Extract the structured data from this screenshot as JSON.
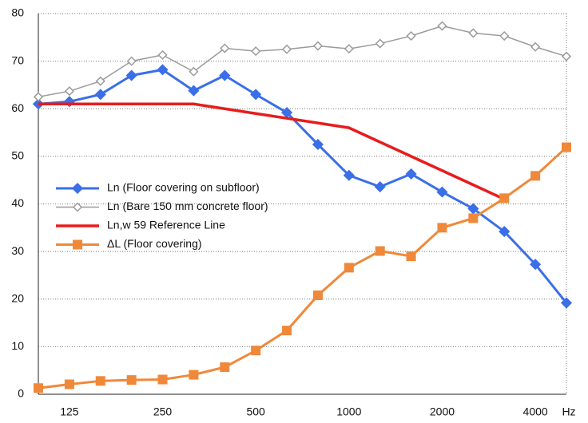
{
  "chart_data": {
    "type": "line",
    "xlabel": "Hz",
    "categories": [
      null,
      125,
      null,
      null,
      250,
      null,
      null,
      500,
      null,
      null,
      1000,
      null,
      null,
      2000,
      null,
      null,
      4000,
      null
    ],
    "series": [
      {
        "name": "Ln  (Floor covering on subfloor)",
        "color": "#3a6fe8",
        "marker": "diamond",
        "width": 3,
        "values": [
          61,
          61.5,
          63,
          67,
          68.2,
          63.8,
          67,
          63,
          59.2,
          52.5,
          46,
          43.6,
          46.3,
          42.5,
          39,
          34.2,
          27.3,
          19.2
        ]
      },
      {
        "name": "Ln  (Bare 150 mm concrete floor)",
        "color": "#9a9a9a",
        "marker": "diamond-open",
        "width": 1.5,
        "values": [
          62.5,
          63.7,
          65.8,
          70,
          71.3,
          67.8,
          72.7,
          72.1,
          72.5,
          73.2,
          72.6,
          73.7,
          75.3,
          77.4,
          75.9,
          75.3,
          73,
          71
        ]
      },
      {
        "name": "Ln,w  59 Reference Line",
        "color": "#e81c1c",
        "marker": "none",
        "width": 3.5,
        "values": [
          61,
          61,
          61,
          61,
          61,
          61,
          60,
          59,
          58,
          57,
          56,
          53,
          50,
          47,
          44,
          41,
          null,
          null
        ]
      },
      {
        "name": "ΔL  (Floor covering)",
        "color": "#f0883a",
        "marker": "square",
        "width": 3,
        "values": [
          1.3,
          2.1,
          2.8,
          3,
          3.1,
          4.1,
          5.7,
          9.2,
          13.4,
          20.8,
          26.6,
          30.1,
          29,
          35,
          37,
          41.2,
          45.9,
          51.9
        ]
      }
    ],
    "ylim": [
      0,
      80
    ],
    "yticks": [
      0,
      10,
      20,
      30,
      40,
      50,
      60,
      70,
      80
    ],
    "grid": true
  }
}
